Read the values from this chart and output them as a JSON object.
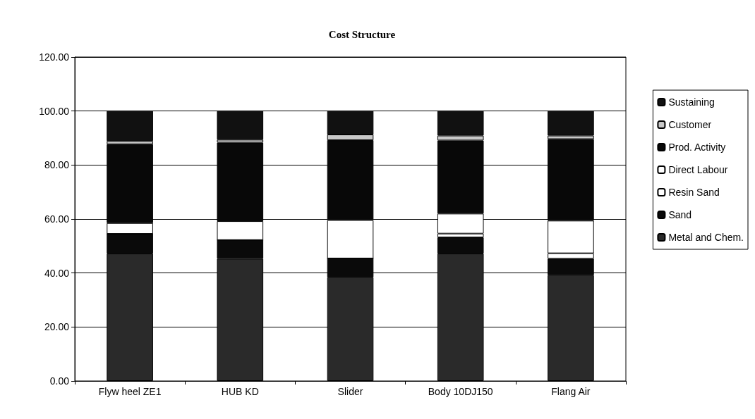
{
  "chart_data": {
    "type": "bar",
    "title": "Cost Structure",
    "stacked": true,
    "categories": [
      "Flyw heel ZE1",
      "HUB KD",
      "Slider",
      "Body 10DJ150",
      "Flang Air"
    ],
    "series": [
      {
        "name": "Metal and Chem.",
        "color": "#2a2a2a",
        "values": [
          47.2,
          45.3,
          38.4,
          47.2,
          39.2
        ]
      },
      {
        "name": "Sand",
        "color": "#0a0a0a",
        "values": [
          7.3,
          6.9,
          7.0,
          6.0,
          6.1
        ]
      },
      {
        "name": "Resin Sand",
        "color": "#ffffff",
        "values": [
          0,
          0,
          0,
          1.4,
          2.0
        ]
      },
      {
        "name": "Direct Labour",
        "color": "#ffffff",
        "values": [
          4.0,
          7.0,
          14.2,
          7.4,
          12.1
        ]
      },
      {
        "name": "Prod. Activity",
        "color": "#080808",
        "values": [
          29.2,
          29.1,
          29.6,
          27.1,
          30.2
        ]
      },
      {
        "name": "Customer",
        "color": "#c8c8c8",
        "values": [
          1.2,
          1.1,
          2.1,
          1.8,
          1.3
        ]
      },
      {
        "name": "Sustaining",
        "color": "#111111",
        "values": [
          11.1,
          10.6,
          8.7,
          9.1,
          9.1
        ]
      }
    ],
    "ylim": [
      0,
      120
    ],
    "yticks": [
      {
        "value": 0,
        "label": "0.00"
      },
      {
        "value": 20,
        "label": "20.00"
      },
      {
        "value": 40,
        "label": "40.00"
      },
      {
        "value": 60,
        "label": "60.00"
      },
      {
        "value": 80,
        "label": "80.00"
      },
      {
        "value": 100,
        "label": "100.00"
      },
      {
        "value": 120,
        "label": "120.00"
      }
    ],
    "grid": "y",
    "legend": "right"
  }
}
